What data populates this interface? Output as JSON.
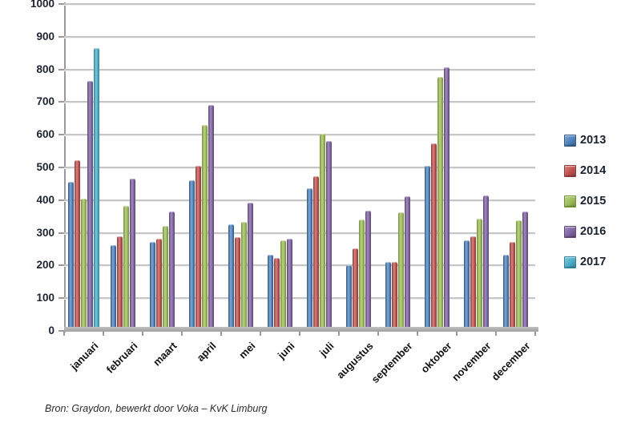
{
  "chart": {
    "y_axis": {
      "min": 0,
      "max": 1000,
      "step": 100
    },
    "source_note": "Bron: Graydon, bewerkt door Voka – KvK Limburg"
  },
  "chart_data": {
    "type": "bar",
    "title": "",
    "xlabel": "",
    "ylabel": "",
    "ylim": [
      0,
      1000
    ],
    "ytick_step": 100,
    "grid": true,
    "legend_position": "right",
    "categories": [
      "januari",
      "februari",
      "maart",
      "april",
      "mei",
      "juni",
      "juli",
      "augustus",
      "september",
      "oktober",
      "november",
      "december"
    ],
    "series": [
      {
        "name": "2013",
        "color": "#4F81BD",
        "color_light": "#7FA8D9",
        "color_dark": "#2E5984",
        "values": [
          455,
          263,
          273,
          461,
          325,
          232,
          437,
          202,
          212,
          506,
          277,
          233
        ]
      },
      {
        "name": "2014",
        "color": "#C0504D",
        "color_light": "#D98481",
        "color_dark": "#8C3836",
        "values": [
          522,
          288,
          283,
          506,
          286,
          224,
          473,
          253,
          210,
          573,
          288,
          273
        ]
      },
      {
        "name": "2015",
        "color": "#9BBB59",
        "color_light": "#BCD284",
        "color_dark": "#71903A",
        "values": [
          405,
          383,
          320,
          630,
          333,
          277,
          604,
          340,
          362,
          778,
          342,
          338
        ]
      },
      {
        "name": "2016",
        "color": "#8064A2",
        "color_light": "#A48BC4",
        "color_dark": "#5B4675",
        "values": [
          765,
          466,
          365,
          691,
          392,
          283,
          580,
          367,
          411,
          807,
          413,
          364
        ]
      },
      {
        "name": "2017",
        "color": "#4BACC6",
        "color_light": "#7CC9DD",
        "color_dark": "#31809A",
        "values": [
          865,
          null,
          null,
          null,
          null,
          null,
          null,
          null,
          null,
          null,
          null,
          null
        ]
      }
    ]
  }
}
